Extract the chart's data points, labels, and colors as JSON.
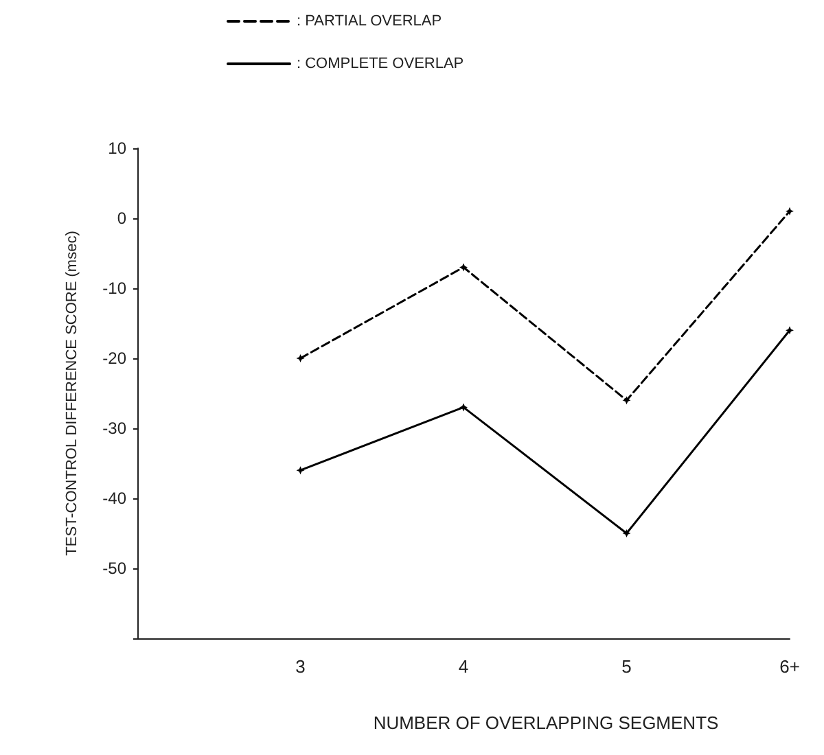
{
  "chart_data": {
    "type": "line",
    "xlabel": "NUMBER OF OVERLAPPING SEGMENTS",
    "ylabel": "TEST-CONTROL DIFFERENCE SCORE (msec)",
    "categories": [
      null,
      "3",
      "4",
      "5",
      "6+"
    ],
    "series": [
      {
        "name": ": PARTIAL OVERLAP",
        "color": "#000000",
        "line_style": "dashed",
        "values": [
          null,
          -20,
          -7,
          -26,
          1
        ]
      },
      {
        "name": ": COMPLETE OVERLAP",
        "color": "#000000",
        "line_style": "solid",
        "values": [
          null,
          -36,
          -27,
          -45,
          -16
        ]
      }
    ],
    "ylim": [
      -60,
      10
    ],
    "yticks": [
      10,
      0,
      -10,
      -20,
      -30,
      -40,
      -50,
      {
        "value": -60,
        "label": null
      }
    ],
    "grid": false,
    "legend": "top",
    "marker": "star"
  }
}
